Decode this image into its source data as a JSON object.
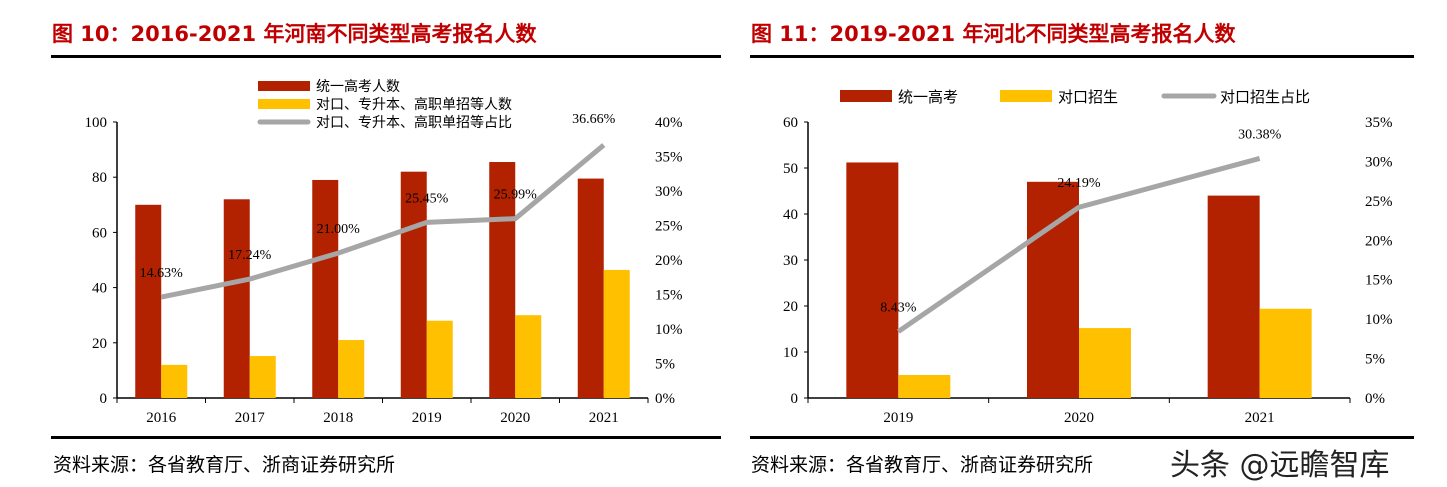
{
  "colors": {
    "primary": "#b22200",
    "secondary": "#ffc000",
    "line": "#a6a6a6",
    "title": "#c00000"
  },
  "watermark": "头条 @远瞻智库",
  "chart_data": [
    {
      "type": "bar",
      "title": "图 10：2016-2021 年河南不同类型高考报名人数",
      "source": "资料来源：各省教育厅、浙商证券研究所",
      "categories": [
        "2016",
        "2017",
        "2018",
        "2019",
        "2020",
        "2021"
      ],
      "series": [
        {
          "name": "统一高考人数",
          "type": "bar",
          "axis": "left",
          "values": [
            70,
            72,
            79,
            82,
            85.5,
            79.5
          ]
        },
        {
          "name": "对口、专升本、高职单招等人数",
          "type": "bar",
          "axis": "left",
          "values": [
            12,
            15.2,
            21,
            28,
            30,
            46.4
          ]
        },
        {
          "name": "对口、专升本、高职单招等占比",
          "type": "line",
          "axis": "right",
          "values": [
            14.63,
            17.24,
            21.0,
            25.45,
            25.99,
            36.66
          ],
          "labels": [
            "14.63%",
            "17.24%",
            "21.00%",
            "25.45%",
            "25.99%",
            "36.66%"
          ]
        }
      ],
      "ylim": [
        0,
        100
      ],
      "yticks": [
        "0",
        "20",
        "40",
        "60",
        "80",
        "100"
      ],
      "y2lim": [
        0,
        40
      ],
      "y2ticks": [
        "0%",
        "5%",
        "10%",
        "15%",
        "20%",
        "25%",
        "30%",
        "35%",
        "40%"
      ],
      "legend": "top-center, stacked vertically",
      "grid": false
    },
    {
      "type": "bar",
      "title": "图 11：2019-2021 年河北不同类型高考报名人数",
      "source": "资料来源：各省教育厅、浙商证券研究所",
      "categories": [
        "2019",
        "2020",
        "2021"
      ],
      "series": [
        {
          "name": "统一高考",
          "type": "bar",
          "axis": "left",
          "values": [
            51.2,
            47,
            44
          ]
        },
        {
          "name": "对口招生",
          "type": "bar",
          "axis": "left",
          "values": [
            5,
            15.2,
            19.4
          ]
        },
        {
          "name": "对口招生占比",
          "type": "line",
          "axis": "right",
          "values": [
            8.43,
            24.19,
            30.38
          ],
          "labels": [
            "8.43%",
            "24.19%",
            "30.38%"
          ]
        }
      ],
      "ylim": [
        0,
        60
      ],
      "yticks": [
        "0",
        "10",
        "20",
        "30",
        "40",
        "50",
        "60"
      ],
      "y2lim": [
        0,
        35
      ],
      "y2ticks": [
        "0%",
        "5%",
        "10%",
        "15%",
        "20%",
        "25%",
        "30%",
        "35%"
      ],
      "legend": "top, horizontal",
      "grid": false
    }
  ]
}
